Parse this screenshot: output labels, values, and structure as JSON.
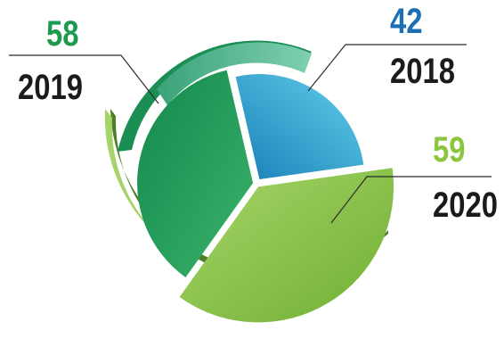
{
  "chart_data": {
    "type": "pie",
    "title": "",
    "categories": [
      "2018",
      "2019",
      "2020"
    ],
    "values": [
      42,
      58,
      59
    ],
    "value_labels": [
      "42",
      "58",
      "59"
    ],
    "colors": {
      "2018": "#2BA6D5",
      "2019": "#1FA061",
      "2020": "#8CC63F"
    },
    "label_colors": {
      "2018": "#1C6FB5",
      "2019": "#1C9A4E",
      "2020": "#8CC63F"
    },
    "legend": "none",
    "grid": false,
    "style": "exploded 3D pie with callout leader lines"
  }
}
